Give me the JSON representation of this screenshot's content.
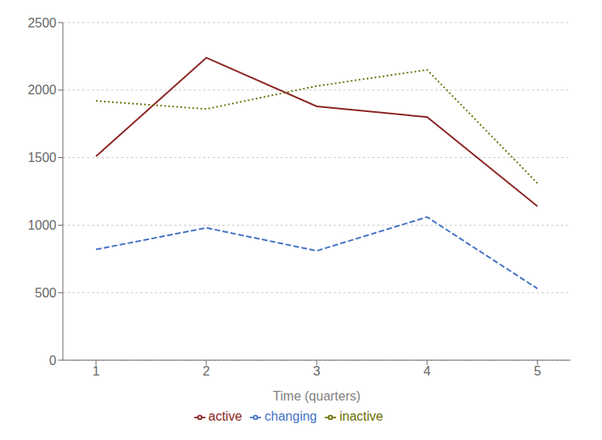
{
  "chart_data": {
    "type": "line",
    "xlabel": "Time (quarters)",
    "x": [
      1,
      2,
      3,
      4,
      5
    ],
    "series": [
      {
        "name": "changing",
        "color": "#4472c4",
        "line_style": "dashed",
        "values": [
          820,
          980,
          810,
          1060,
          530
        ]
      },
      {
        "name": "active",
        "color": "#8b2323",
        "line_style": "solid",
        "values": [
          1510,
          2240,
          1880,
          1800,
          1140
        ]
      },
      {
        "name": "inactive",
        "color": "#6b7000",
        "line_style": "dotted",
        "values": [
          1920,
          1860,
          2030,
          2150,
          1310
        ]
      }
    ],
    "xlim": [
      0.7,
      5.3
    ],
    "xticks": [
      1,
      2,
      3,
      4,
      5
    ],
    "ylim": [
      0,
      2500
    ],
    "yticks": [
      0,
      500,
      1000,
      1500,
      2000,
      2500
    ],
    "grid": "y",
    "legend": "bottom"
  }
}
